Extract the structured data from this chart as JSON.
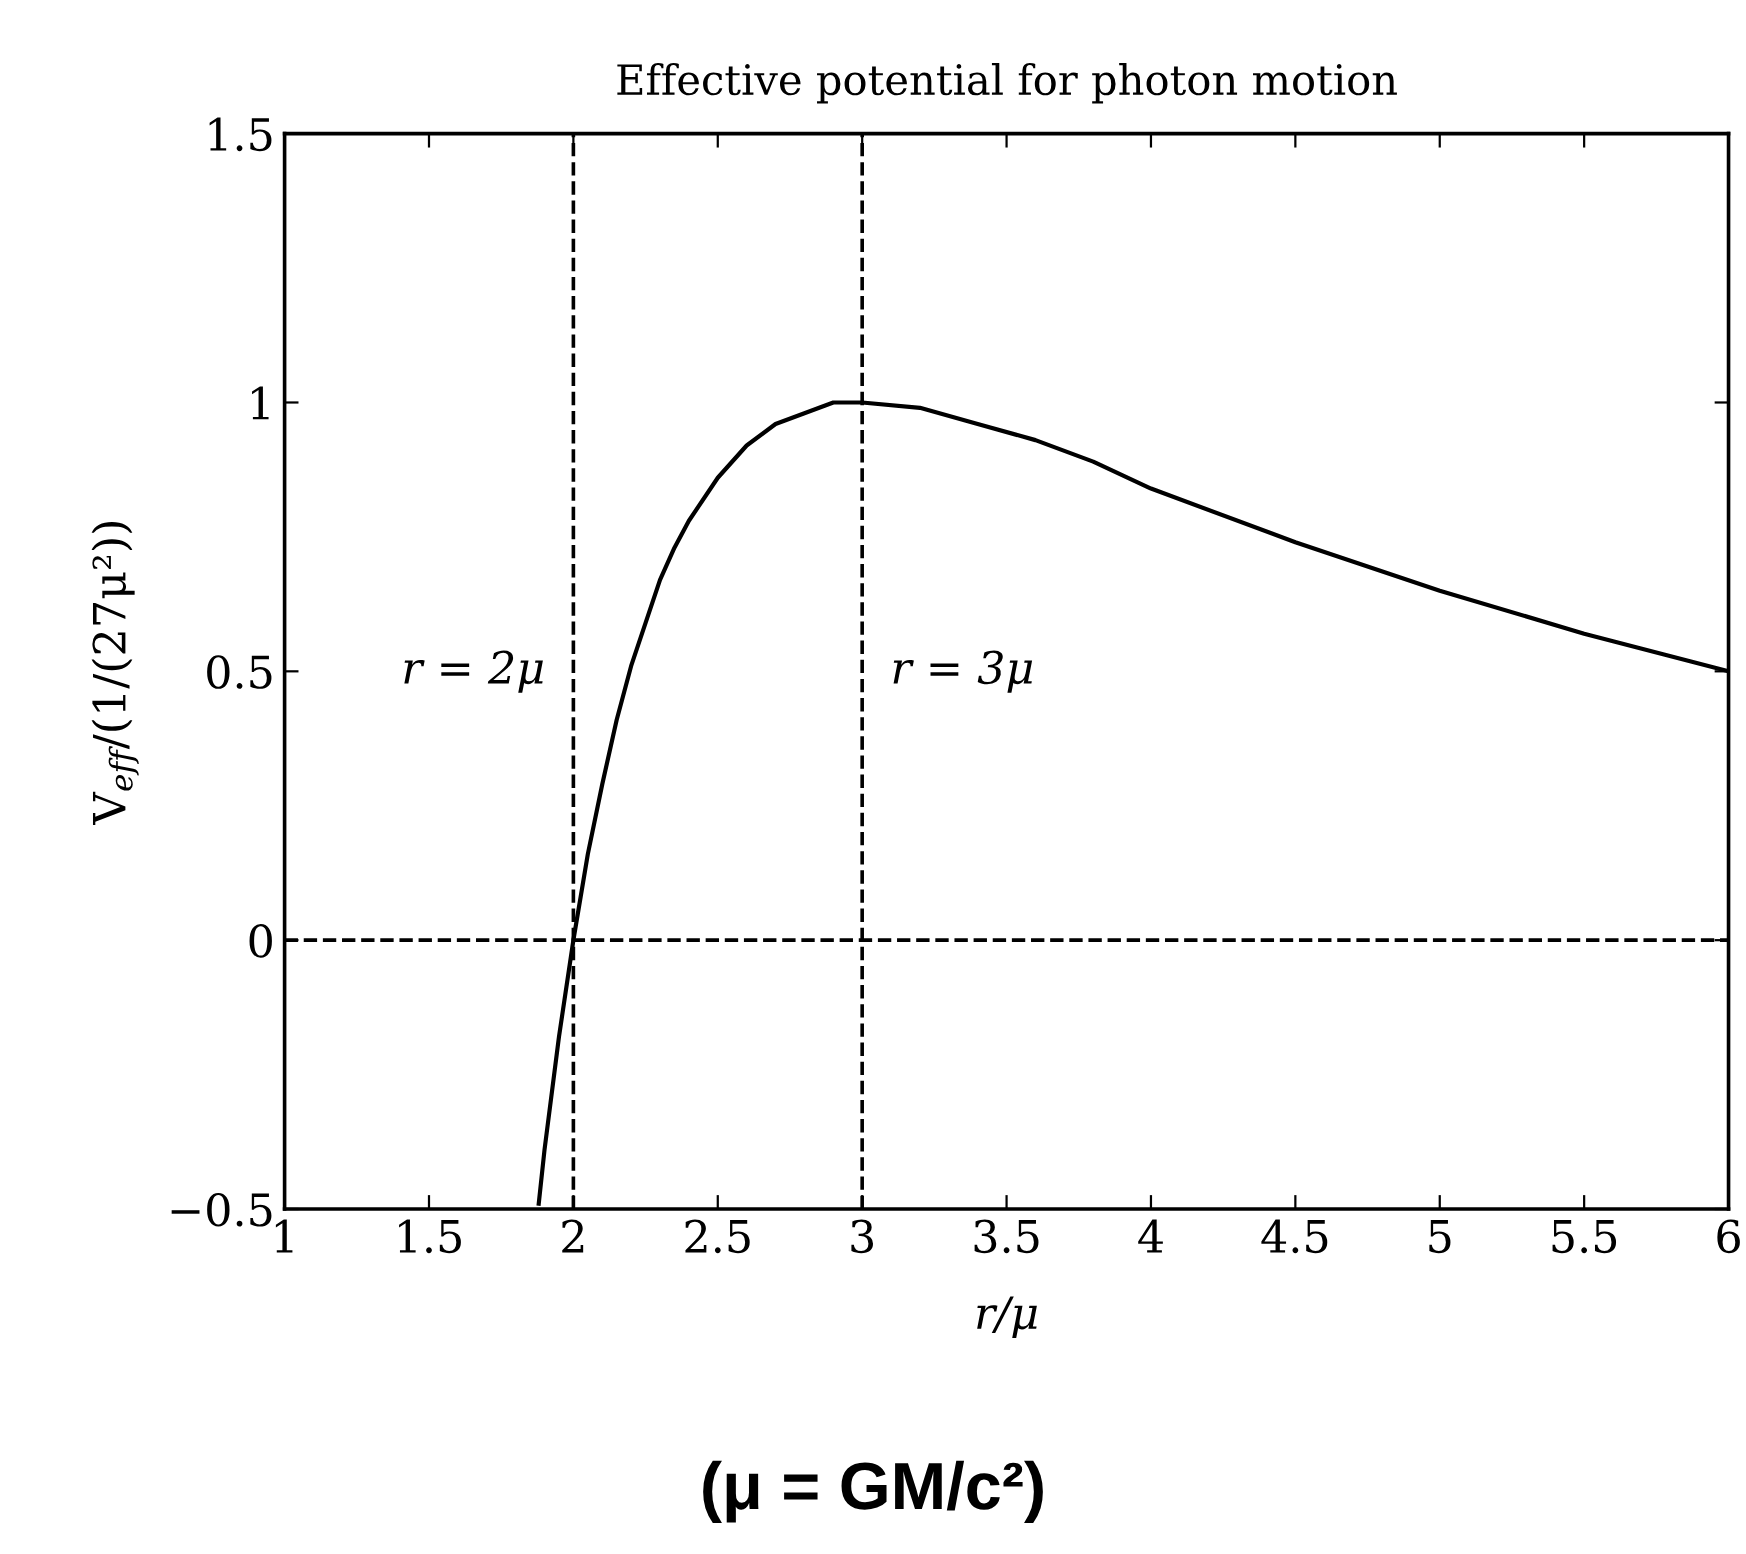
{
  "chart_data": {
    "type": "line",
    "title": "Effective potential for photon motion",
    "xlabel": "r/μ",
    "ylabel": "V$_{eff}$/(1/(27μ²))",
    "x": [
      1.88,
      1.9,
      1.95,
      2,
      2.05,
      2.1,
      2.15,
      2.2,
      2.25,
      2.3,
      2.35,
      2.4,
      2.5,
      2.6,
      2.7,
      2.8,
      2.9,
      3,
      3.2,
      3.4,
      3.6,
      3.8,
      4,
      4.5,
      5,
      5.5,
      6
    ],
    "series": [
      {
        "color": "#000000",
        "values": [
          -0.49,
          -0.39,
          -0.18,
          0,
          0.16,
          0.29,
          0.41,
          0.51,
          0.59,
          0.67,
          0.73,
          0.78,
          0.86,
          0.92,
          0.96,
          0.98,
          1.0,
          1.0,
          0.99,
          0.96,
          0.93,
          0.89,
          0.84,
          0.74,
          0.65,
          0.57,
          0.5
        ]
      }
    ],
    "xlim": [
      1,
      6
    ],
    "ylim": [
      -0.5,
      1.5
    ],
    "xticks": [
      1,
      1.5,
      2,
      2.5,
      3,
      3.5,
      4,
      4.5,
      5,
      5.5,
      6
    ],
    "yticks": [
      {
        "value": -0.5,
        "label": "−0.5"
      },
      0,
      0.5,
      1,
      1.5
    ],
    "ref_lines": [
      {
        "axis": "x",
        "value": 2,
        "line_style": "dashed",
        "color": "#000000",
        "label": "r = 2μ"
      },
      {
        "axis": "x",
        "value": 3,
        "line_style": "dashed",
        "color": "#000000",
        "label": "r = 3μ"
      },
      {
        "axis": "y",
        "value": 0,
        "line_style": "dashed",
        "color": "#000000"
      }
    ],
    "annotations": [
      "(μ = GM/c²)"
    ],
    "line_style": "solid",
    "marker": "none",
    "grid": false,
    "legend": false
  }
}
